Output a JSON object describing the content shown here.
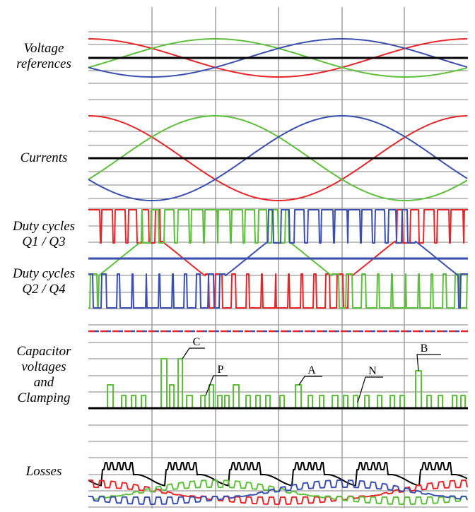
{
  "chart_data": {
    "type": "line",
    "title": "",
    "colors": {
      "phase_a": "#e8262a",
      "phase_b": "#3a4fb0",
      "phase_c": "#5dbf3a",
      "black": "#000000",
      "grid": "#9a9a9a"
    },
    "panels": [
      {
        "label_lines": [
          "Voltage",
          "references"
        ],
        "series": [
          {
            "color": "red",
            "kind": "sine",
            "amplitude": 1,
            "phase_deg": 90
          },
          {
            "color": "green",
            "kind": "sine",
            "amplitude": 1,
            "phase_deg": -30
          },
          {
            "color": "blue",
            "kind": "sine",
            "amplitude": 1,
            "phase_deg": 210
          }
        ]
      },
      {
        "label_lines": [
          "Currents"
        ],
        "series": [
          {
            "color": "red",
            "kind": "sine",
            "amplitude": 1,
            "phase_deg": 90
          },
          {
            "color": "green",
            "kind": "sine",
            "amplitude": 1,
            "phase_deg": -30
          },
          {
            "color": "blue",
            "kind": "sine",
            "amplitude": 1,
            "phase_deg": 210
          }
        ]
      },
      {
        "label_lines": [
          "Duty cycles",
          "Q1 / Q3"
        ],
        "series": []
      },
      {
        "label_lines": [
          "Duty cycles",
          "Q2 / Q4"
        ],
        "series": []
      },
      {
        "label_lines": [
          "Capacitor",
          "voltages",
          "and",
          "Clamping"
        ],
        "series": []
      },
      {
        "label_lines": [
          "Losses"
        ],
        "series": []
      }
    ],
    "annotations": [
      "C",
      "P",
      "A",
      "N",
      "B"
    ]
  }
}
